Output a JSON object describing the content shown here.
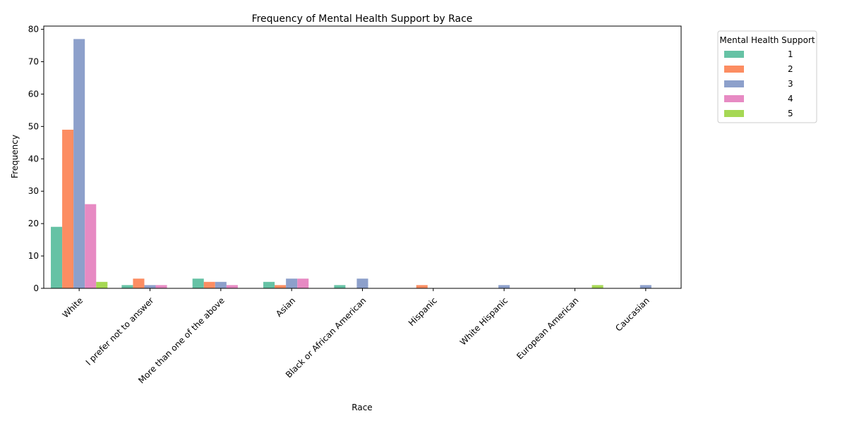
{
  "chart_data": {
    "type": "bar",
    "title": "Frequency of Mental Health Support by Race",
    "xlabel": "Race",
    "ylabel": "Frequency",
    "ylim": [
      0,
      81
    ],
    "yticks": [
      0,
      10,
      20,
      30,
      40,
      50,
      60,
      70,
      80
    ],
    "categories": [
      "White",
      "I prefer not to answer",
      "More than one of the above",
      "Asian",
      "Black or African American",
      "Hispanic",
      "White Hispanic",
      "European American",
      "Caucasian"
    ],
    "legend": {
      "title": "Mental Health Support",
      "position": "top-right, outside plot"
    },
    "series": [
      {
        "name": "1",
        "color": "#66c2a5",
        "values": [
          19,
          1,
          3,
          2,
          1,
          0,
          0,
          0,
          0
        ]
      },
      {
        "name": "2",
        "color": "#fc8d62",
        "values": [
          49,
          3,
          2,
          1,
          0,
          1,
          0,
          0,
          0
        ]
      },
      {
        "name": "3",
        "color": "#8da0cb",
        "values": [
          77,
          1,
          2,
          3,
          3,
          0,
          1,
          0,
          1
        ]
      },
      {
        "name": "4",
        "color": "#e78ac3",
        "values": [
          26,
          1,
          1,
          3,
          0,
          0,
          0,
          0,
          0
        ]
      },
      {
        "name": "5",
        "color": "#a6d854",
        "values": [
          2,
          0,
          0,
          0,
          0,
          0,
          0,
          1,
          0
        ]
      }
    ],
    "grid": false
  }
}
